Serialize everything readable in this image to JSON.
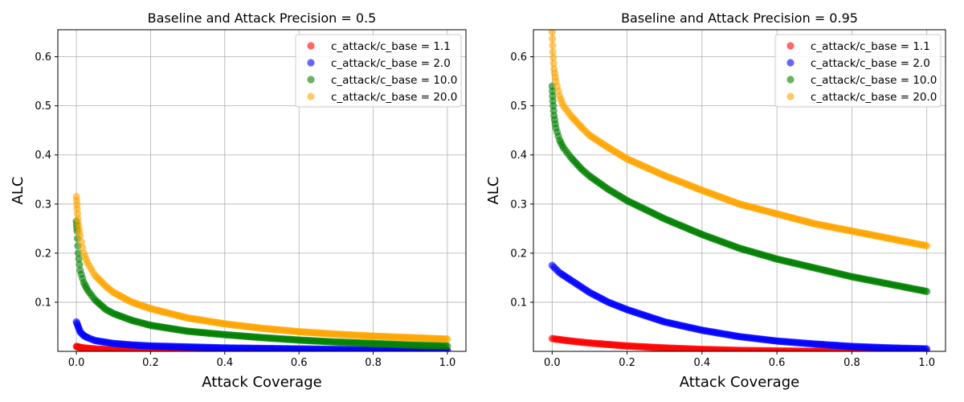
{
  "chart_data": [
    {
      "type": "scatter",
      "title": "Baseline and Attack Precision = 0.5",
      "xlabel": "Attack Coverage",
      "ylabel": "ALC",
      "xlim": [
        -0.05,
        1.05
      ],
      "ylim": [
        0.0,
        0.655
      ],
      "xticks": [
        0.0,
        0.2,
        0.4,
        0.6,
        0.8,
        1.0
      ],
      "xtick_labels": [
        "0.0",
        "0.2",
        "0.4",
        "0.6",
        "0.8",
        "1.0"
      ],
      "yticks": [
        0.1,
        0.2,
        0.3,
        0.4,
        0.5,
        0.6
      ],
      "ytick_labels": [
        "0.1",
        "0.2",
        "0.3",
        "0.4",
        "0.5",
        "0.6"
      ],
      "grid": true,
      "legend": "top-right",
      "series": [
        {
          "name": "c_attack/c_base = 1.1",
          "color": "#ff0000",
          "x": [
            0.0,
            0.005,
            0.01,
            0.02,
            0.05,
            0.1,
            0.2,
            0.3,
            0.4,
            0.6,
            0.8,
            1.0
          ],
          "y": [
            0.01,
            0.009,
            0.008,
            0.007,
            0.005,
            0.003,
            0.001,
            0.0,
            0.0,
            0.0,
            0.0,
            0.0
          ]
        },
        {
          "name": "c_attack/c_base = 2.0",
          "color": "#0000ff",
          "x": [
            0.0,
            0.005,
            0.01,
            0.02,
            0.03,
            0.05,
            0.1,
            0.15,
            0.2,
            0.3,
            0.4,
            0.5,
            0.6,
            0.7,
            0.8,
            0.9,
            1.0
          ],
          "y": [
            0.06,
            0.05,
            0.04,
            0.032,
            0.028,
            0.022,
            0.016,
            0.013,
            0.011,
            0.009,
            0.007,
            0.006,
            0.005,
            0.004,
            0.003,
            0.002,
            0.002
          ]
        },
        {
          "name": "c_attack/c_base = 10.0",
          "color": "#008000",
          "x": [
            0.0,
            0.002,
            0.005,
            0.01,
            0.02,
            0.03,
            0.05,
            0.08,
            0.1,
            0.15,
            0.2,
            0.3,
            0.4,
            0.5,
            0.6,
            0.7,
            0.8,
            0.9,
            1.0
          ],
          "y": [
            0.265,
            0.245,
            0.2,
            0.165,
            0.14,
            0.125,
            0.105,
            0.085,
            0.077,
            0.063,
            0.053,
            0.041,
            0.034,
            0.028,
            0.023,
            0.019,
            0.016,
            0.013,
            0.011
          ]
        },
        {
          "name": "c_attack/c_base = 20.0",
          "color": "#ffa500",
          "x": [
            0.0,
            0.002,
            0.005,
            0.01,
            0.02,
            0.03,
            0.05,
            0.08,
            0.1,
            0.15,
            0.2,
            0.3,
            0.4,
            0.5,
            0.6,
            0.7,
            0.8,
            0.9,
            1.0
          ],
          "y": [
            0.315,
            0.29,
            0.26,
            0.235,
            0.2,
            0.18,
            0.155,
            0.132,
            0.12,
            0.1,
            0.087,
            0.068,
            0.056,
            0.047,
            0.04,
            0.035,
            0.031,
            0.028,
            0.025
          ]
        }
      ]
    },
    {
      "type": "scatter",
      "title": "Baseline and Attack Precision = 0.95",
      "xlabel": "Attack Coverage",
      "ylabel": "ALC",
      "xlim": [
        -0.05,
        1.05
      ],
      "ylim": [
        0.0,
        0.655
      ],
      "xticks": [
        0.0,
        0.2,
        0.4,
        0.6,
        0.8,
        1.0
      ],
      "xtick_labels": [
        "0.0",
        "0.2",
        "0.4",
        "0.6",
        "0.8",
        "1.0"
      ],
      "yticks": [
        0.1,
        0.2,
        0.3,
        0.4,
        0.5,
        0.6
      ],
      "ytick_labels": [
        "0.1",
        "0.2",
        "0.3",
        "0.4",
        "0.5",
        "0.6"
      ],
      "grid": true,
      "legend": "top-right",
      "series": [
        {
          "name": "c_attack/c_base = 1.1",
          "color": "#ff0000",
          "x": [
            0.0,
            0.05,
            0.1,
            0.2,
            0.3,
            0.4,
            0.5,
            0.6,
            0.7,
            0.8,
            0.9,
            1.0
          ],
          "y": [
            0.026,
            0.021,
            0.017,
            0.011,
            0.007,
            0.004,
            0.002,
            0.001,
            0.0,
            0.0,
            0.0,
            0.0
          ]
        },
        {
          "name": "c_attack/c_base = 2.0",
          "color": "#0000ff",
          "x": [
            0.0,
            0.02,
            0.05,
            0.1,
            0.15,
            0.2,
            0.3,
            0.4,
            0.5,
            0.6,
            0.7,
            0.8,
            0.9,
            1.0
          ],
          "y": [
            0.175,
            0.16,
            0.145,
            0.12,
            0.1,
            0.085,
            0.06,
            0.043,
            0.03,
            0.021,
            0.015,
            0.01,
            0.007,
            0.005
          ]
        },
        {
          "name": "c_attack/c_base = 10.0",
          "color": "#008000",
          "x": [
            0.0,
            0.002,
            0.005,
            0.01,
            0.02,
            0.03,
            0.05,
            0.08,
            0.1,
            0.15,
            0.2,
            0.3,
            0.4,
            0.5,
            0.6,
            0.7,
            0.8,
            0.9,
            1.0
          ],
          "y": [
            0.54,
            0.51,
            0.48,
            0.455,
            0.43,
            0.415,
            0.395,
            0.37,
            0.357,
            0.33,
            0.307,
            0.27,
            0.238,
            0.21,
            0.188,
            0.17,
            0.152,
            0.137,
            0.122
          ]
        },
        {
          "name": "c_attack/c_base = 20.0",
          "color": "#ffa500",
          "x": [
            0.0,
            0.002,
            0.005,
            0.01,
            0.02,
            0.03,
            0.05,
            0.08,
            0.1,
            0.15,
            0.2,
            0.3,
            0.4,
            0.5,
            0.6,
            0.7,
            0.8,
            0.9,
            1.0
          ],
          "y": [
            0.65,
            0.61,
            0.575,
            0.55,
            0.52,
            0.5,
            0.48,
            0.455,
            0.44,
            0.415,
            0.392,
            0.358,
            0.328,
            0.3,
            0.28,
            0.26,
            0.245,
            0.23,
            0.215
          ]
        }
      ]
    }
  ]
}
